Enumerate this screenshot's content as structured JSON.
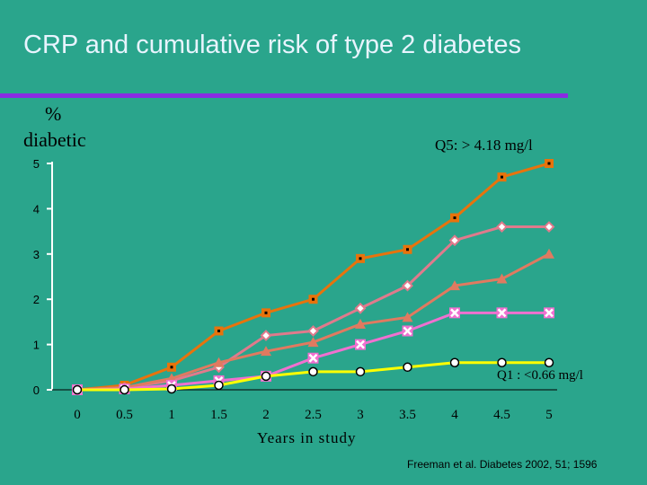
{
  "slide": {
    "title": "CRP and cumulative risk of type 2 diabetes",
    "credit": "Freeman et al. Diabetes 2002, 51; 1596"
  },
  "chart_data": {
    "type": "line",
    "title": "",
    "ylabel_line1": "%",
    "ylabel_line2": "diabetic",
    "xlabel": "Years in study",
    "x": [
      0,
      0.5,
      1,
      1.5,
      2,
      2.5,
      3,
      3.5,
      4,
      4.5,
      5
    ],
    "x_tick_labels": [
      "0",
      "0.5",
      "1",
      "1.5",
      "2",
      "2.5",
      "3",
      "3.5",
      "4",
      "4.5",
      "5"
    ],
    "y_tick_labels": [
      "0",
      "1",
      "2",
      "3",
      "4",
      "5"
    ],
    "xlim": [
      0,
      5
    ],
    "ylim": [
      0,
      5
    ],
    "grid": false,
    "annotations": {
      "top": "Q5: > 4.18 mg/l",
      "bottom": "Q1 : <0.66 mg/l"
    },
    "series": [
      {
        "values": [
          0,
          0.1,
          0.5,
          1.3,
          1.7,
          2.0,
          2.9,
          3.1,
          3.8,
          4.7,
          5.0
        ],
        "color": "#e8730c",
        "marker": "square-dot"
      },
      {
        "values": [
          0,
          0.05,
          0.2,
          0.5,
          1.2,
          1.3,
          1.8,
          2.3,
          3.3,
          3.6,
          3.6
        ],
        "color": "#e07a8c",
        "marker": "diamond"
      },
      {
        "values": [
          0,
          0.05,
          0.25,
          0.6,
          0.85,
          1.05,
          1.45,
          1.6,
          2.3,
          2.45,
          3.0
        ],
        "color": "#e07a60",
        "marker": "triangle"
      },
      {
        "values": [
          0,
          0.02,
          0.1,
          0.2,
          0.3,
          0.7,
          1.0,
          1.3,
          1.7,
          1.7,
          1.7
        ],
        "color": "#f070d0",
        "marker": "x-square"
      },
      {
        "values": [
          0,
          0.0,
          0.02,
          0.1,
          0.3,
          0.4,
          0.4,
          0.5,
          0.6,
          0.6,
          0.6
        ],
        "color": "#ffff00",
        "marker": "circle"
      }
    ]
  }
}
